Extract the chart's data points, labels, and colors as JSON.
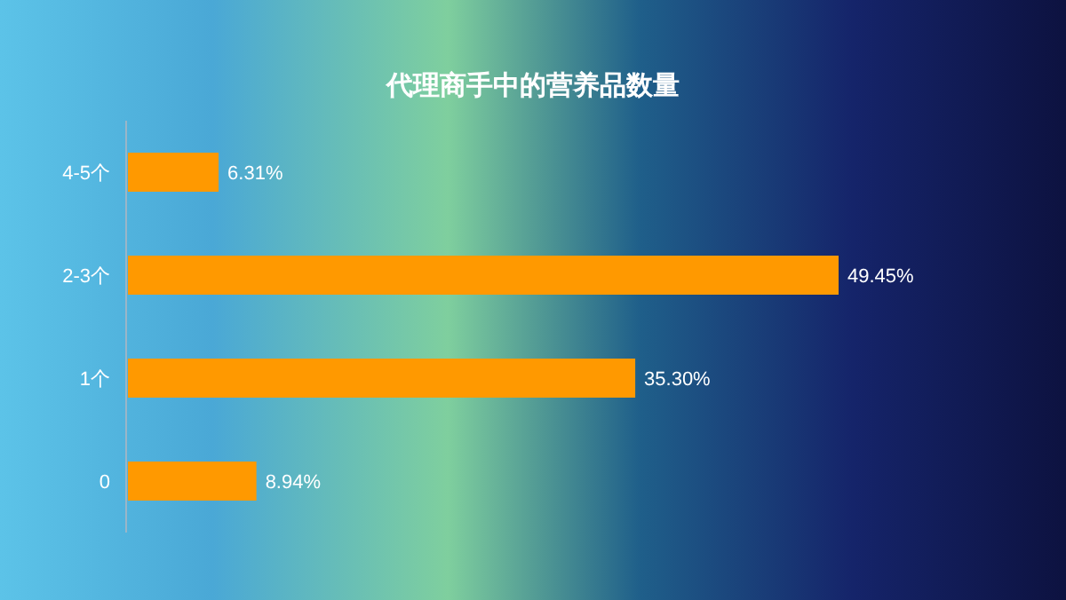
{
  "chart_data": {
    "type": "bar",
    "orientation": "horizontal",
    "title": "代理商手中的营养品数量",
    "categories": [
      "4-5个",
      "2-3个",
      "1个",
      "0"
    ],
    "values": [
      6.31,
      49.45,
      35.3,
      8.94
    ],
    "value_labels": [
      "6.31%",
      "49.45%",
      "35.30%",
      "8.94%"
    ],
    "color": "#ff9900"
  }
}
